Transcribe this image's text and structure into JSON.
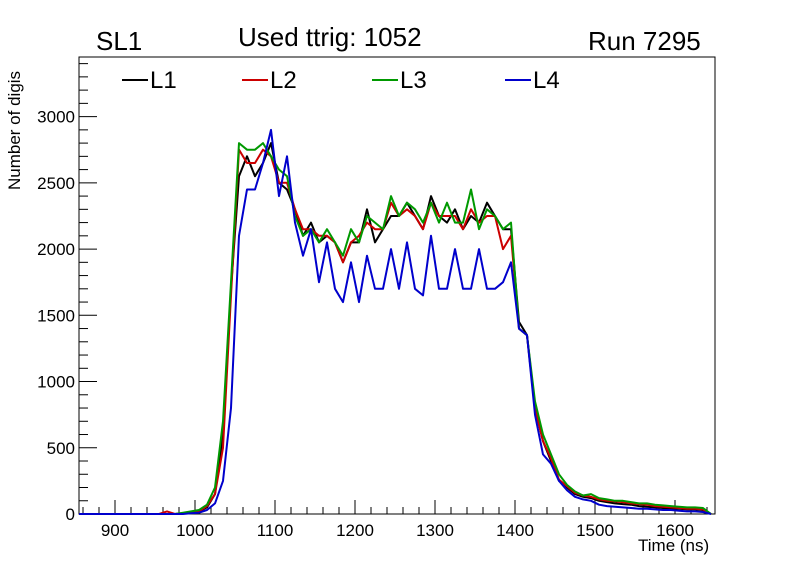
{
  "header": {
    "left": "SL1",
    "center": "Used ttrig: 1052",
    "right": "Run 7295"
  },
  "chart_data": {
    "type": "line",
    "xlabel": "Time (ns)",
    "ylabel": "Number of digis",
    "xlim": [
      855,
      1650
    ],
    "ylim": [
      0,
      3450
    ],
    "xticks": [
      900,
      1000,
      1100,
      1200,
      1300,
      1400,
      1500,
      1600
    ],
    "yticks": [
      0,
      500,
      1000,
      1500,
      2000,
      2500,
      3000
    ],
    "grid": false,
    "legend_position": "top",
    "x": [
      855,
      865,
      875,
      885,
      895,
      905,
      915,
      925,
      935,
      945,
      955,
      965,
      975,
      985,
      995,
      1005,
      1015,
      1025,
      1035,
      1045,
      1055,
      1065,
      1075,
      1085,
      1095,
      1105,
      1115,
      1125,
      1135,
      1145,
      1155,
      1165,
      1175,
      1185,
      1195,
      1205,
      1215,
      1225,
      1235,
      1245,
      1255,
      1265,
      1275,
      1285,
      1295,
      1305,
      1315,
      1325,
      1335,
      1345,
      1355,
      1365,
      1375,
      1385,
      1395,
      1405,
      1415,
      1425,
      1435,
      1445,
      1455,
      1465,
      1475,
      1485,
      1495,
      1505,
      1515,
      1525,
      1535,
      1545,
      1555,
      1565,
      1575,
      1585,
      1595,
      1605,
      1615,
      1625,
      1635,
      1645
    ],
    "series": [
      {
        "name": "L1",
        "color": "#000000",
        "values": [
          0,
          0,
          0,
          0,
          0,
          0,
          0,
          0,
          0,
          0,
          0,
          0,
          0,
          5,
          10,
          20,
          50,
          150,
          600,
          1700,
          2550,
          2700,
          2550,
          2650,
          2800,
          2500,
          2450,
          2300,
          2100,
          2200,
          2050,
          2100,
          2050,
          1900,
          2050,
          2050,
          2300,
          2050,
          2150,
          2250,
          2250,
          2350,
          2250,
          2150,
          2400,
          2250,
          2200,
          2300,
          2150,
          2250,
          2200,
          2350,
          2250,
          2150,
          2150,
          1450,
          1350,
          800,
          550,
          400,
          250,
          200,
          150,
          130,
          120,
          100,
          90,
          80,
          75,
          70,
          60,
          55,
          50,
          45,
          40,
          40,
          35,
          35,
          30,
          0
        ]
      },
      {
        "name": "L2",
        "color": "#cc0000",
        "values": [
          0,
          0,
          0,
          0,
          0,
          0,
          0,
          0,
          0,
          0,
          0,
          20,
          0,
          5,
          10,
          20,
          60,
          150,
          500,
          1650,
          2750,
          2650,
          2650,
          2750,
          2700,
          2500,
          2500,
          2300,
          2150,
          2150,
          2100,
          2100,
          2050,
          1900,
          2050,
          2100,
          2200,
          2150,
          2150,
          2350,
          2250,
          2300,
          2250,
          2150,
          2350,
          2250,
          2250,
          2250,
          2150,
          2300,
          2200,
          2250,
          2250,
          2000,
          2100,
          1400,
          1350,
          800,
          550,
          420,
          260,
          210,
          160,
          140,
          130,
          110,
          100,
          95,
          90,
          80,
          75,
          70,
          60,
          55,
          50,
          45,
          40,
          40,
          35,
          0
        ]
      },
      {
        "name": "L3",
        "color": "#009900",
        "values": [
          0,
          0,
          0,
          0,
          0,
          0,
          0,
          0,
          0,
          0,
          0,
          0,
          0,
          10,
          20,
          30,
          70,
          200,
          700,
          1750,
          2800,
          2750,
          2750,
          2800,
          2700,
          2600,
          2550,
          2250,
          2100,
          2150,
          2050,
          2150,
          2050,
          1950,
          2150,
          2050,
          2250,
          2200,
          2150,
          2400,
          2250,
          2350,
          2300,
          2200,
          2350,
          2200,
          2350,
          2200,
          2200,
          2450,
          2150,
          2300,
          2250,
          2150,
          2200,
          1400,
          1350,
          850,
          600,
          450,
          300,
          220,
          170,
          140,
          150,
          120,
          110,
          100,
          100,
          90,
          80,
          80,
          70,
          65,
          60,
          55,
          50,
          50,
          45,
          0
        ]
      },
      {
        "name": "L4",
        "color": "#0000cc",
        "values": [
          0,
          0,
          0,
          0,
          0,
          0,
          0,
          0,
          0,
          0,
          0,
          0,
          0,
          0,
          5,
          10,
          30,
          80,
          250,
          800,
          2100,
          2450,
          2450,
          2650,
          2900,
          2400,
          2700,
          2200,
          1950,
          2150,
          1750,
          2050,
          1700,
          1600,
          1900,
          1600,
          1950,
          1700,
          1700,
          2000,
          1700,
          2050,
          1700,
          1650,
          2100,
          1700,
          1700,
          2000,
          1700,
          1700,
          2000,
          1700,
          1700,
          1750,
          1900,
          1400,
          1350,
          750,
          450,
          380,
          250,
          180,
          130,
          110,
          100,
          70,
          60,
          55,
          50,
          45,
          40,
          40,
          35,
          30,
          30,
          25,
          20,
          20,
          15,
          0
        ]
      }
    ]
  }
}
